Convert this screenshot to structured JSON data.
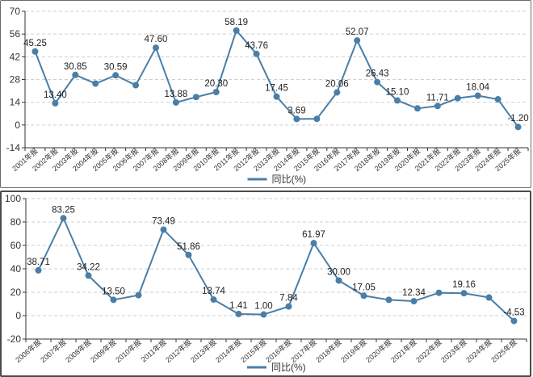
{
  "colors": {
    "series": "#4a7ea6",
    "axis": "#333333"
  },
  "chart_data": [
    {
      "type": "line",
      "title": "",
      "xlabel": "",
      "ylabel": "",
      "ylim": [
        -14,
        70
      ],
      "yticks": [
        "70",
        "56",
        "42",
        "28",
        "14",
        "0",
        "-14"
      ],
      "grid": true,
      "legend_position": "bottom-center",
      "categories": [
        "2001年报",
        "2002年报",
        "2003年报",
        "2004年报",
        "2005年报",
        "2006年报",
        "2007年报",
        "2008年报",
        "2009年报",
        "2010年报",
        "2011年报",
        "2012年报",
        "2013年报",
        "2014年报",
        "2015年报",
        "2016年报",
        "2017年报",
        "2018年报",
        "2019年报",
        "2020年报",
        "2021年报",
        "2022年报",
        "2023年报",
        "2024年报",
        "2025年报"
      ],
      "series": [
        {
          "name": "同比(%)",
          "values": [
            45.25,
            13.4,
            30.85,
            25.5,
            30.59,
            24.5,
            47.6,
            13.88,
            17.2,
            20.3,
            58.19,
            43.76,
            17.45,
            3.69,
            3.8,
            20.06,
            52.07,
            26.43,
            15.1,
            10.2,
            11.71,
            16.5,
            18.04,
            15.8,
            -1.2
          ],
          "labels": [
            "45.25",
            "13.40",
            "30.85",
            "",
            "30.59",
            "",
            "47.60",
            "13.88",
            "",
            "20.30",
            "58.19",
            "43.76",
            "17.45",
            "3.69",
            "",
            "20.06",
            "52.07",
            "26.43",
            "15.10",
            "",
            "11.71",
            "",
            "18.04",
            "",
            "-1.20"
          ]
        }
      ]
    },
    {
      "type": "line",
      "title": "",
      "xlabel": "",
      "ylabel": "",
      "ylim": [
        -20,
        100
      ],
      "yticks": [
        "100",
        "80",
        "60",
        "40",
        "20",
        "0",
        "-20"
      ],
      "grid": true,
      "legend_position": "bottom-center",
      "categories": [
        "2006年报",
        "2007年报",
        "2008年报",
        "2009年报",
        "2010年报",
        "2011年报",
        "2012年报",
        "2013年报",
        "2014年报",
        "2015年报",
        "2016年报",
        "2017年报",
        "2018年报",
        "2019年报",
        "2020年报",
        "2021年报",
        "2022年报",
        "2023年报",
        "2024年报",
        "2025年报"
      ],
      "series": [
        {
          "name": "同比(%)",
          "values": [
            38.71,
            83.25,
            34.22,
            13.5,
            17.5,
            73.49,
            51.86,
            13.74,
            1.41,
            1.0,
            7.84,
            61.97,
            30.0,
            17.05,
            13.5,
            12.34,
            19.5,
            19.16,
            15.5,
            -4.53
          ],
          "labels": [
            "38.71",
            "83.25",
            "34.22",
            "13.50",
            "",
            "73.49",
            "51.86",
            "13.74",
            "1.41",
            "1.00",
            "7.84",
            "61.97",
            "30.00",
            "17.05",
            "",
            "12.34",
            "",
            "19.16",
            "",
            "-4.53"
          ]
        }
      ]
    }
  ]
}
